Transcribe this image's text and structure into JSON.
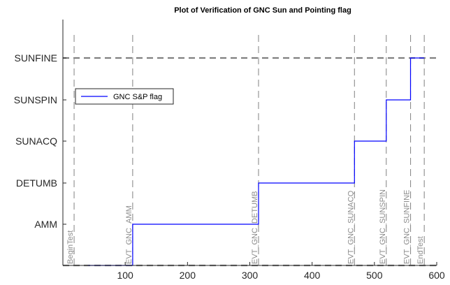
{
  "chart_data": {
    "type": "line",
    "title": "Plot of Verification of GNC Sun and Pointing flag",
    "xlabel": "",
    "ylabel": "",
    "xlim": [
      0,
      600
    ],
    "x_ticks": [
      100,
      200,
      300,
      400,
      500,
      600
    ],
    "y_levels": [
      "",
      "AMM",
      "DETUMB",
      "SUNACQ",
      "SUNSPIN",
      "SUNFINE"
    ],
    "y_tick_labels": [
      "AMM",
      "DETUMB",
      "SUNACQ",
      "SUNSPIN",
      "SUNFINE"
    ],
    "series": [
      {
        "name": "GNC S&P flag",
        "color": "#0000ff",
        "x": [
          40,
          112,
          112,
          314,
          314,
          468,
          468,
          519,
          519,
          558,
          558,
          580
        ],
        "y": [
          0,
          0,
          1,
          1,
          2,
          2,
          3,
          3,
          4,
          4,
          5,
          5
        ]
      }
    ],
    "events": [
      {
        "label": "BeginTest",
        "x": 18
      },
      {
        "label": "EVT_GNC_AMM",
        "x": 112
      },
      {
        "label": "EVT_GNC_DETUMB",
        "x": 314
      },
      {
        "label": "EVT_GNC_SUNACQ",
        "x": 468
      },
      {
        "label": "EVT_GNC_SUNSPIN",
        "x": 519
      },
      {
        "label": "EVT_GNC_SUNFINE",
        "x": 558
      },
      {
        "label": "EndTest",
        "x": 580
      }
    ],
    "horizontal_limits": [
      0,
      5
    ],
    "legend": {
      "position": "top-left",
      "entries": [
        "GNC S&P flag"
      ]
    },
    "grid": false,
    "colors": {
      "series": "#0000ff",
      "event_line": "#8c8c8c",
      "limit_line": "#808080",
      "axis": "#262626"
    }
  }
}
